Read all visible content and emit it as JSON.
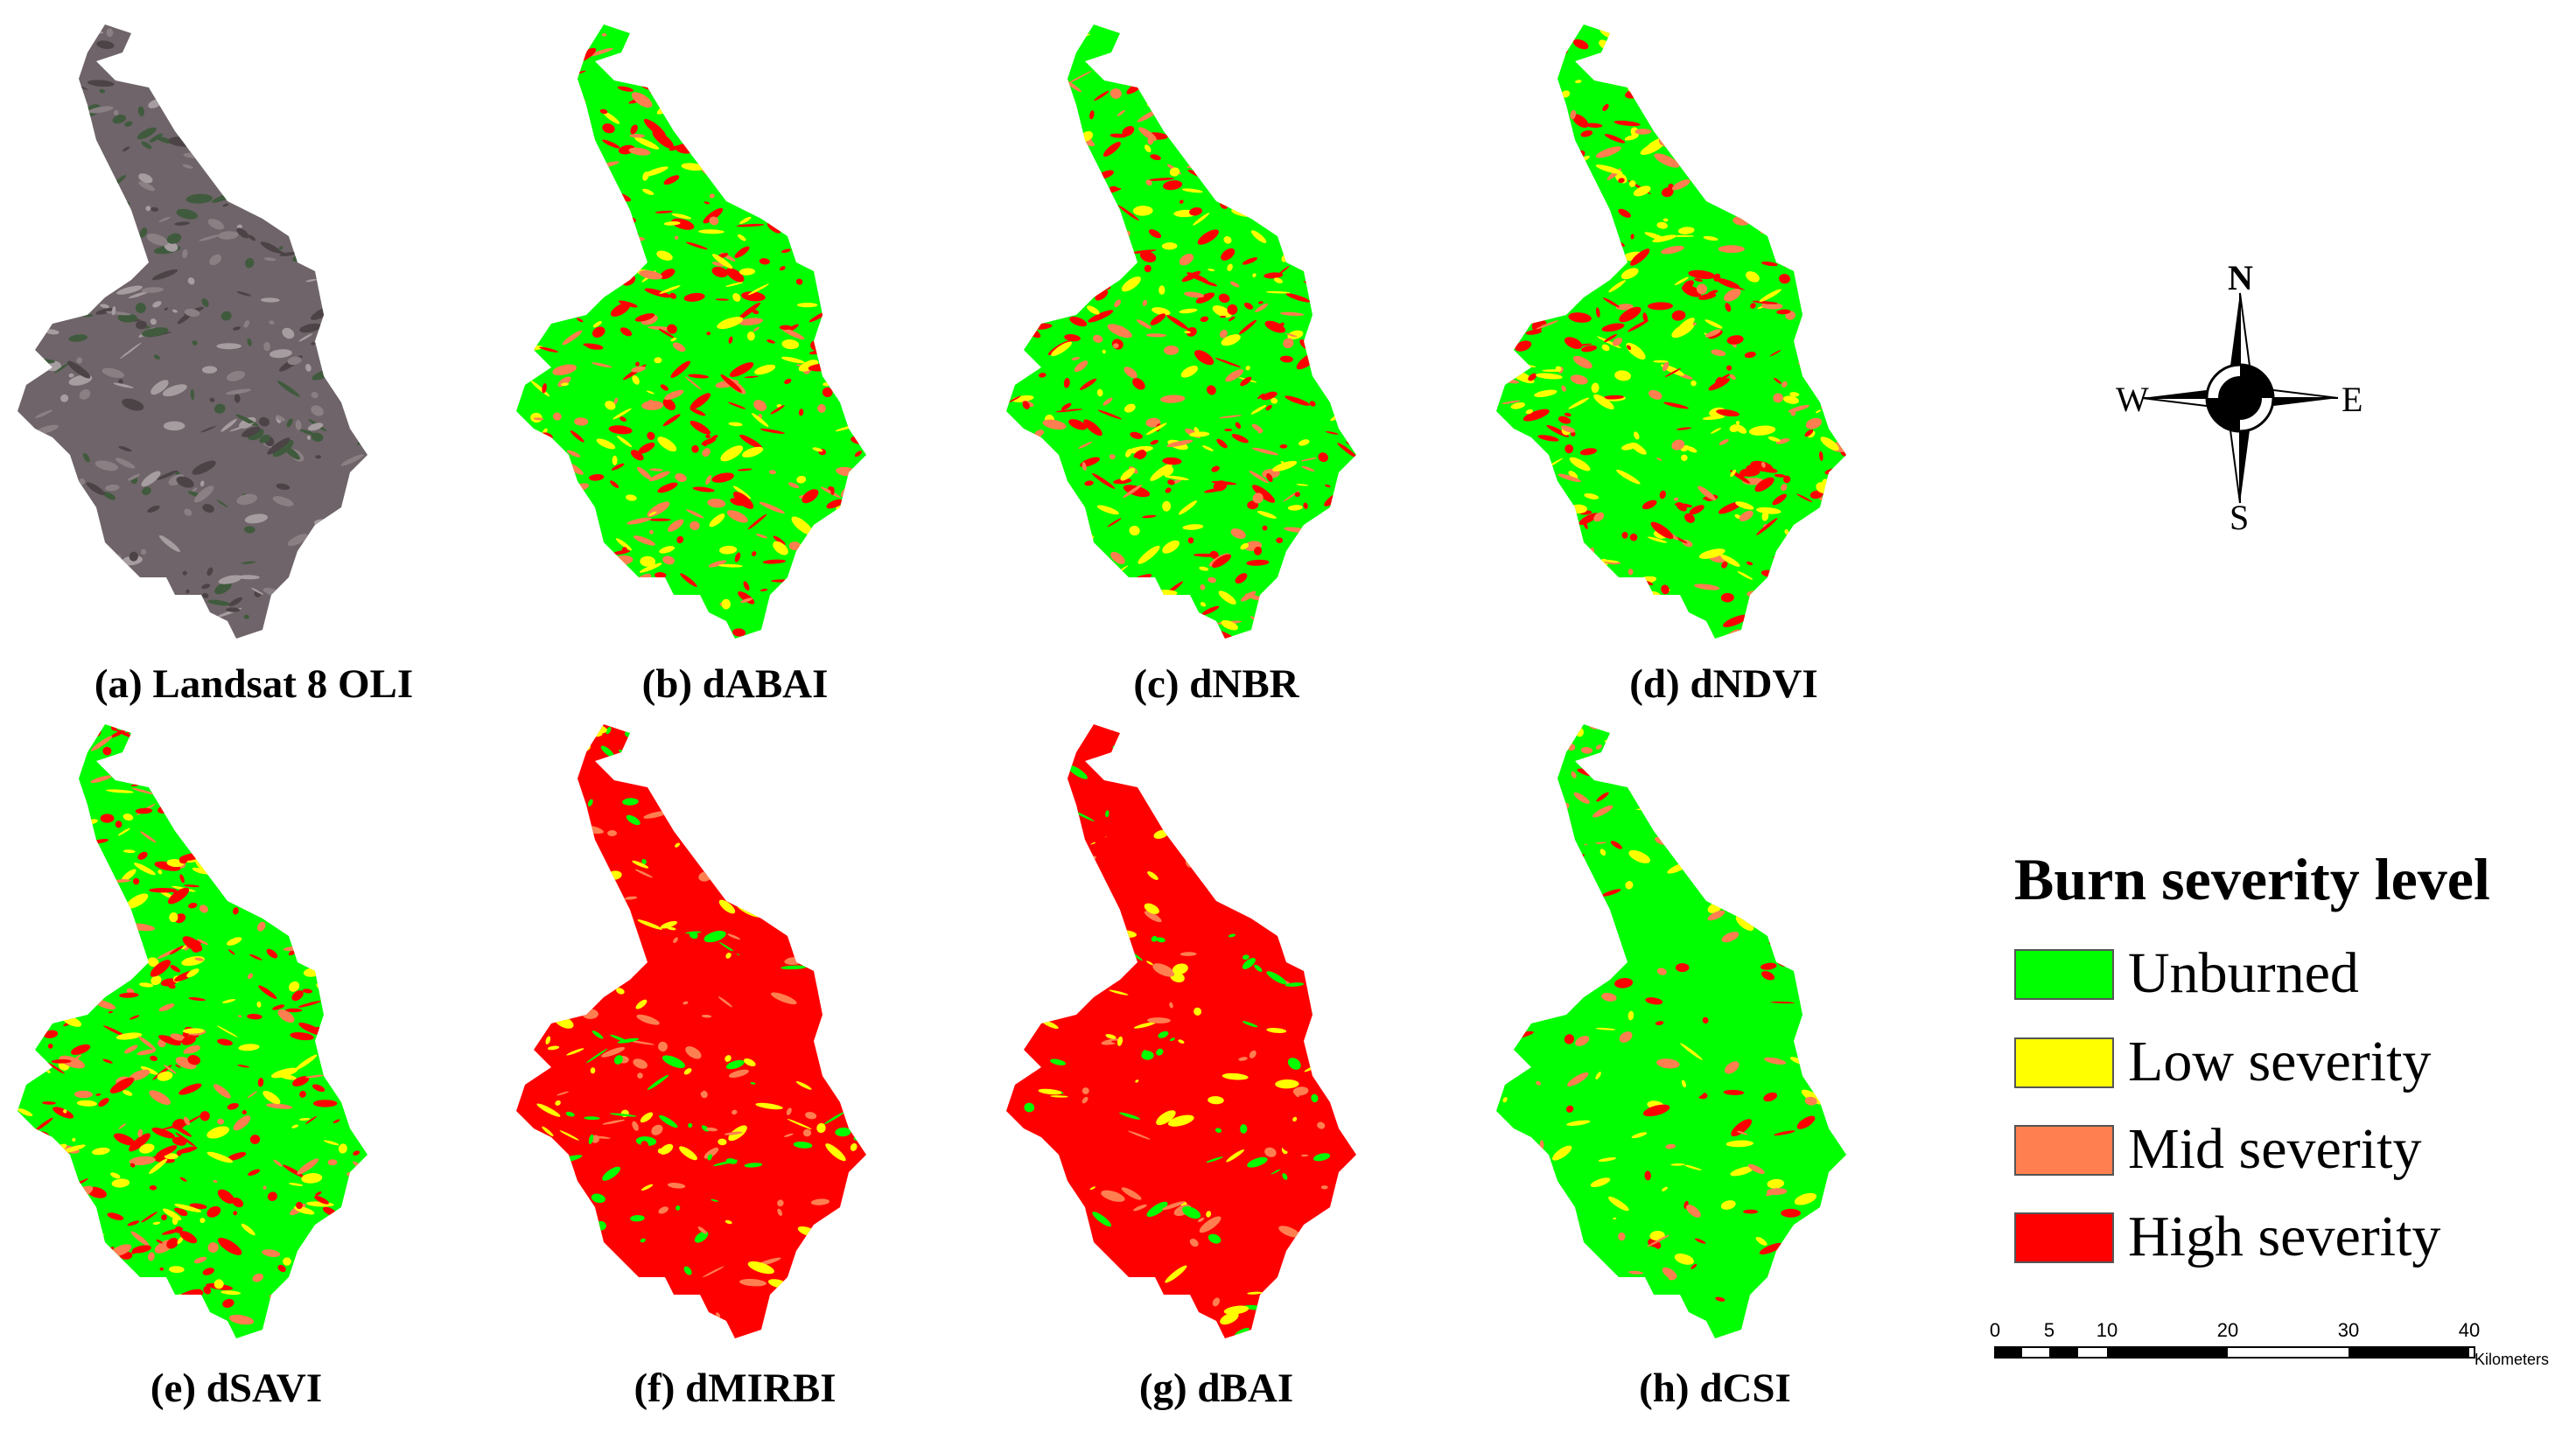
{
  "panels": [
    {
      "id": "a",
      "caption": "(a) Landsat 8 OLI",
      "kind": "satellite"
    },
    {
      "id": "b",
      "caption": "(b) dABAI",
      "kind": "class",
      "dominant": "mixed"
    },
    {
      "id": "c",
      "caption": "(c) dNBR",
      "kind": "class",
      "dominant": "mixed"
    },
    {
      "id": "d",
      "caption": "(d) dNDVI",
      "kind": "class",
      "dominant": "mixed"
    },
    {
      "id": "e",
      "caption": "(e) dSAVI",
      "kind": "class",
      "dominant": "mixed"
    },
    {
      "id": "f",
      "caption": "(f) dMIRBI",
      "kind": "class",
      "dominant": "high"
    },
    {
      "id": "g",
      "caption": "(g) dBAI",
      "kind": "class",
      "dominant": "high"
    },
    {
      "id": "h",
      "caption": "(h) dCSI",
      "kind": "class",
      "dominant": "unburned"
    }
  ],
  "legend": {
    "title": "Burn severity level",
    "items": [
      {
        "label": "Unburned",
        "color": "#00ff00"
      },
      {
        "label": "Low severity",
        "color": "#ffff00"
      },
      {
        "label": "Mid severity",
        "color": "#ff7f50"
      },
      {
        "label": "High severity",
        "color": "#ff0000"
      }
    ]
  },
  "compass": {
    "n": "N",
    "s": "S",
    "e": "E",
    "w": "W"
  },
  "scale_bar": {
    "ticks": [
      "0",
      "5",
      "10",
      "20",
      "30",
      "40"
    ],
    "unit": "Kilometers"
  }
}
